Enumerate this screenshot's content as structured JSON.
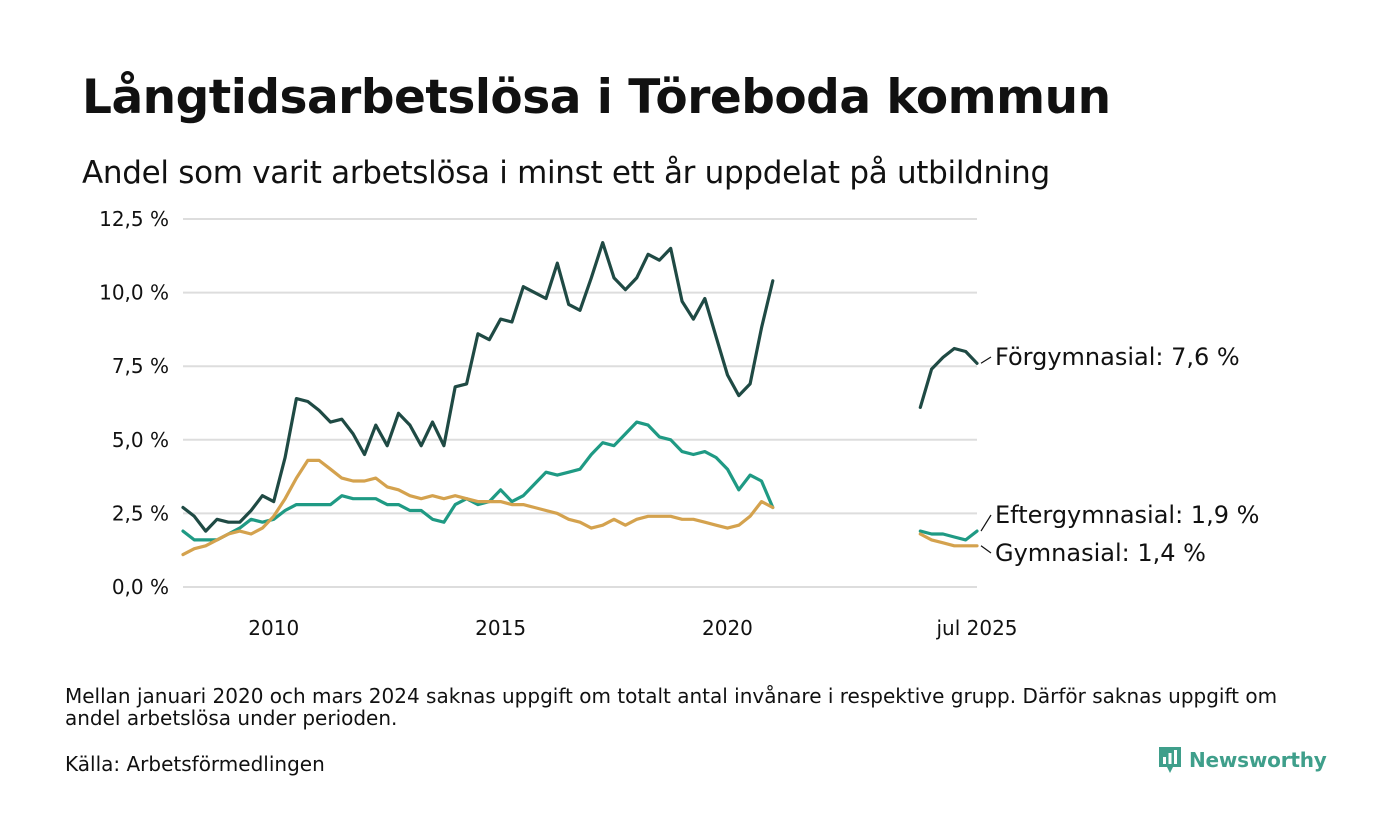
{
  "header": {
    "title": "Långtidsarbetslösa i Töreboda kommun",
    "subtitle": "Andel som varit arbetslösa i minst ett år uppdelat på utbildning"
  },
  "footer": {
    "note": "Mellan januari 2020 och mars 2024 saknas uppgift om totalt antal invånare i respektive grupp. Därför saknas uppgift om andel arbetslösa under perioden.",
    "source": "Källa: Arbetsförmedlingen",
    "brand": "Newsworthy",
    "brand_icon": "newsworthy-logo-icon",
    "brand_color": "#3f9f8b"
  },
  "chart_data": {
    "type": "line",
    "title": "Långtidsarbetslösa i Töreboda kommun",
    "subtitle": "Andel som varit arbetslösa i minst ett år uppdelat på utbildning",
    "y_unit": "%",
    "ylim": [
      0,
      12.5
    ],
    "y_ticks": [
      0,
      2.5,
      5,
      7.5,
      10,
      12.5
    ],
    "y_tick_labels": [
      "0,0 %",
      "2,5 %",
      "5,0 %",
      "7,5 %",
      "10,0 %",
      "12,5 %"
    ],
    "xlim": [
      2008.0,
      2025.5
    ],
    "x_ticks": [
      2010,
      2015,
      2020,
      2025.5
    ],
    "x_tick_labels": [
      "2010",
      "2015",
      "2020",
      "jul 2025"
    ],
    "grid": true,
    "gridline_color": "#dddddd",
    "legend": "end-labels",
    "gap": [
      "2021-01",
      "2024-03"
    ],
    "series": [
      {
        "name": "Förgymnasial",
        "end_label": "Förgymnasial: 7,6 %",
        "color": "#1f4a44",
        "points": [
          [
            2008.0,
            2.7
          ],
          [
            2008.25,
            2.4
          ],
          [
            2008.5,
            1.9
          ],
          [
            2008.75,
            2.3
          ],
          [
            2009.0,
            2.2
          ],
          [
            2009.25,
            2.2
          ],
          [
            2009.5,
            2.6
          ],
          [
            2009.75,
            3.1
          ],
          [
            2010.0,
            2.9
          ],
          [
            2010.25,
            4.4
          ],
          [
            2010.5,
            6.4
          ],
          [
            2010.75,
            6.3
          ],
          [
            2011.0,
            6.0
          ],
          [
            2011.25,
            5.6
          ],
          [
            2011.5,
            5.7
          ],
          [
            2011.75,
            5.2
          ],
          [
            2012.0,
            4.5
          ],
          [
            2012.25,
            5.5
          ],
          [
            2012.5,
            4.8
          ],
          [
            2012.75,
            5.9
          ],
          [
            2013.0,
            5.5
          ],
          [
            2013.25,
            4.8
          ],
          [
            2013.5,
            5.6
          ],
          [
            2013.75,
            4.8
          ],
          [
            2014.0,
            6.8
          ],
          [
            2014.25,
            6.9
          ],
          [
            2014.5,
            8.6
          ],
          [
            2014.75,
            8.4
          ],
          [
            2015.0,
            9.1
          ],
          [
            2015.25,
            9.0
          ],
          [
            2015.5,
            10.2
          ],
          [
            2015.75,
            10.0
          ],
          [
            2016.0,
            9.8
          ],
          [
            2016.25,
            11.0
          ],
          [
            2016.5,
            9.6
          ],
          [
            2016.75,
            9.4
          ],
          [
            2017.0,
            10.5
          ],
          [
            2017.25,
            11.7
          ],
          [
            2017.5,
            10.5
          ],
          [
            2017.75,
            10.1
          ],
          [
            2018.0,
            10.5
          ],
          [
            2018.25,
            11.3
          ],
          [
            2018.5,
            11.1
          ],
          [
            2018.75,
            11.5
          ],
          [
            2019.0,
            9.7
          ],
          [
            2019.25,
            9.1
          ],
          [
            2019.5,
            9.8
          ],
          [
            2019.75,
            8.5
          ],
          [
            2020.0,
            7.2
          ],
          [
            2020.25,
            6.5
          ],
          [
            2020.5,
            6.9
          ],
          [
            2020.75,
            8.8
          ],
          [
            2021.0,
            10.4
          ],
          [
            null,
            null
          ],
          [
            2024.25,
            6.1
          ],
          [
            2024.5,
            7.4
          ],
          [
            2024.75,
            7.8
          ],
          [
            2025.0,
            8.1
          ],
          [
            2025.25,
            8.0
          ],
          [
            2025.5,
            7.6
          ]
        ]
      },
      {
        "name": "Eftergymnasial",
        "end_label": "Eftergymnasial: 1,9 %",
        "color": "#1f9a84",
        "points": [
          [
            2008.0,
            1.9
          ],
          [
            2008.25,
            1.6
          ],
          [
            2008.5,
            1.6
          ],
          [
            2008.75,
            1.6
          ],
          [
            2009.0,
            1.8
          ],
          [
            2009.25,
            2.0
          ],
          [
            2009.5,
            2.3
          ],
          [
            2009.75,
            2.2
          ],
          [
            2010.0,
            2.3
          ],
          [
            2010.25,
            2.6
          ],
          [
            2010.5,
            2.8
          ],
          [
            2010.75,
            2.8
          ],
          [
            2011.0,
            2.8
          ],
          [
            2011.25,
            2.8
          ],
          [
            2011.5,
            3.1
          ],
          [
            2011.75,
            3.0
          ],
          [
            2012.0,
            3.0
          ],
          [
            2012.25,
            3.0
          ],
          [
            2012.5,
            2.8
          ],
          [
            2012.75,
            2.8
          ],
          [
            2013.0,
            2.6
          ],
          [
            2013.25,
            2.6
          ],
          [
            2013.5,
            2.3
          ],
          [
            2013.75,
            2.2
          ],
          [
            2014.0,
            2.8
          ],
          [
            2014.25,
            3.0
          ],
          [
            2014.5,
            2.8
          ],
          [
            2014.75,
            2.9
          ],
          [
            2015.0,
            3.3
          ],
          [
            2015.25,
            2.9
          ],
          [
            2015.5,
            3.1
          ],
          [
            2015.75,
            3.5
          ],
          [
            2016.0,
            3.9
          ],
          [
            2016.25,
            3.8
          ],
          [
            2016.5,
            3.9
          ],
          [
            2016.75,
            4.0
          ],
          [
            2017.0,
            4.5
          ],
          [
            2017.25,
            4.9
          ],
          [
            2017.5,
            4.8
          ],
          [
            2017.75,
            5.2
          ],
          [
            2018.0,
            5.6
          ],
          [
            2018.25,
            5.5
          ],
          [
            2018.5,
            5.1
          ],
          [
            2018.75,
            5.0
          ],
          [
            2019.0,
            4.6
          ],
          [
            2019.25,
            4.5
          ],
          [
            2019.5,
            4.6
          ],
          [
            2019.75,
            4.4
          ],
          [
            2020.0,
            4.0
          ],
          [
            2020.25,
            3.3
          ],
          [
            2020.5,
            3.8
          ],
          [
            2020.75,
            3.6
          ],
          [
            2021.0,
            2.7
          ],
          [
            null,
            null
          ],
          [
            2024.25,
            1.9
          ],
          [
            2024.5,
            1.8
          ],
          [
            2024.75,
            1.8
          ],
          [
            2025.0,
            1.7
          ],
          [
            2025.25,
            1.6
          ],
          [
            2025.5,
            1.9
          ]
        ]
      },
      {
        "name": "Gymnasial",
        "end_label": "Gymnasial: 1,4 %",
        "color": "#d4a24e",
        "points": [
          [
            2008.0,
            1.1
          ],
          [
            2008.25,
            1.3
          ],
          [
            2008.5,
            1.4
          ],
          [
            2008.75,
            1.6
          ],
          [
            2009.0,
            1.8
          ],
          [
            2009.25,
            1.9
          ],
          [
            2009.5,
            1.8
          ],
          [
            2009.75,
            2.0
          ],
          [
            2010.0,
            2.4
          ],
          [
            2010.25,
            3.0
          ],
          [
            2010.5,
            3.7
          ],
          [
            2010.75,
            4.3
          ],
          [
            2011.0,
            4.3
          ],
          [
            2011.25,
            4.0
          ],
          [
            2011.5,
            3.7
          ],
          [
            2011.75,
            3.6
          ],
          [
            2012.0,
            3.6
          ],
          [
            2012.25,
            3.7
          ],
          [
            2012.5,
            3.4
          ],
          [
            2012.75,
            3.3
          ],
          [
            2013.0,
            3.1
          ],
          [
            2013.25,
            3.0
          ],
          [
            2013.5,
            3.1
          ],
          [
            2013.75,
            3.0
          ],
          [
            2014.0,
            3.1
          ],
          [
            2014.25,
            3.0
          ],
          [
            2014.5,
            2.9
          ],
          [
            2014.75,
            2.9
          ],
          [
            2015.0,
            2.9
          ],
          [
            2015.25,
            2.8
          ],
          [
            2015.5,
            2.8
          ],
          [
            2015.75,
            2.7
          ],
          [
            2016.0,
            2.6
          ],
          [
            2016.25,
            2.5
          ],
          [
            2016.5,
            2.3
          ],
          [
            2016.75,
            2.2
          ],
          [
            2017.0,
            2.0
          ],
          [
            2017.25,
            2.1
          ],
          [
            2017.5,
            2.3
          ],
          [
            2017.75,
            2.1
          ],
          [
            2018.0,
            2.3
          ],
          [
            2018.25,
            2.4
          ],
          [
            2018.5,
            2.4
          ],
          [
            2018.75,
            2.4
          ],
          [
            2019.0,
            2.3
          ],
          [
            2019.25,
            2.3
          ],
          [
            2019.5,
            2.2
          ],
          [
            2019.75,
            2.1
          ],
          [
            2020.0,
            2.0
          ],
          [
            2020.25,
            2.1
          ],
          [
            2020.5,
            2.4
          ],
          [
            2020.75,
            2.9
          ],
          [
            2021.0,
            2.7
          ],
          [
            null,
            null
          ],
          [
            2024.25,
            1.8
          ],
          [
            2024.5,
            1.6
          ],
          [
            2024.75,
            1.5
          ],
          [
            2025.0,
            1.4
          ],
          [
            2025.25,
            1.4
          ],
          [
            2025.5,
            1.4
          ]
        ]
      }
    ]
  }
}
